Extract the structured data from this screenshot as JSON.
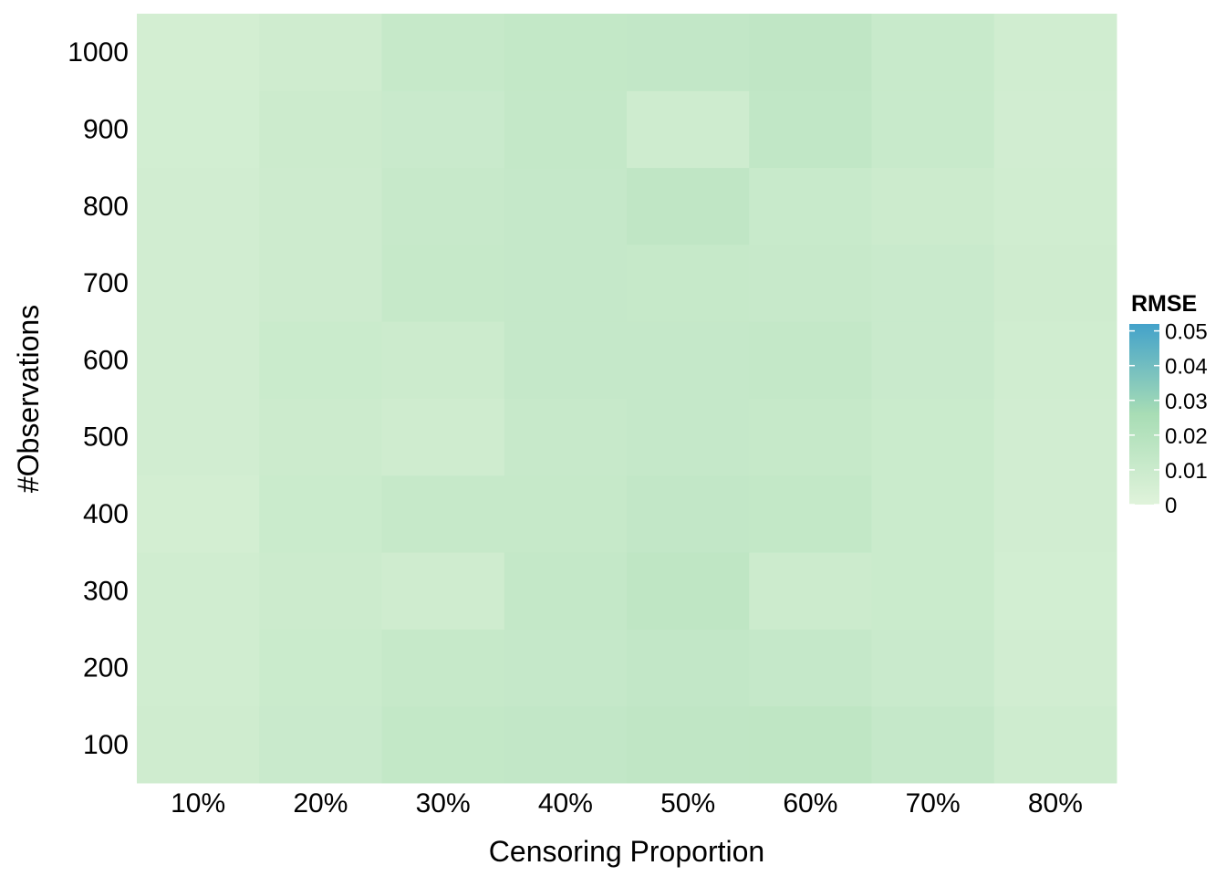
{
  "chart_data": {
    "type": "heatmap",
    "title": "",
    "xlabel": "Censoring Proportion",
    "ylabel": "#Observations",
    "x_categories": [
      "10%",
      "20%",
      "30%",
      "40%",
      "50%",
      "60%",
      "70%",
      "80%"
    ],
    "y_categories": [
      "100",
      "200",
      "300",
      "400",
      "500",
      "600",
      "700",
      "800",
      "900",
      "1000"
    ],
    "values": [
      [
        0.008,
        0.0105,
        0.0135,
        0.014,
        0.015,
        0.0155,
        0.0125,
        0.0085
      ],
      [
        0.0075,
        0.01,
        0.012,
        0.0125,
        0.014,
        0.0125,
        0.0105,
        0.007
      ],
      [
        0.0075,
        0.0095,
        0.008,
        0.013,
        0.0155,
        0.0095,
        0.01,
        0.0065
      ],
      [
        0.006,
        0.01,
        0.012,
        0.012,
        0.014,
        0.0135,
        0.01,
        0.007
      ],
      [
        0.007,
        0.0095,
        0.008,
        0.0115,
        0.0125,
        0.012,
        0.01,
        0.007
      ],
      [
        0.007,
        0.01,
        0.0095,
        0.0125,
        0.0125,
        0.013,
        0.0105,
        0.0075
      ],
      [
        0.007,
        0.009,
        0.012,
        0.0125,
        0.012,
        0.0115,
        0.0105,
        0.008
      ],
      [
        0.007,
        0.009,
        0.0115,
        0.0125,
        0.015,
        0.011,
        0.0095,
        0.0075
      ],
      [
        0.0065,
        0.0095,
        0.0105,
        0.013,
        0.0085,
        0.0145,
        0.011,
        0.007
      ],
      [
        0.006,
        0.008,
        0.012,
        0.0135,
        0.014,
        0.015,
        0.011,
        0.0075
      ]
    ],
    "legend": {
      "title": "RMSE",
      "position": "right",
      "ticks": [
        0,
        0.01,
        0.02,
        0.03,
        0.04,
        0.05
      ],
      "tick_labels": [
        "0",
        "0.01",
        "0.02",
        "0.03",
        "0.04",
        "0.05"
      ],
      "range": [
        0,
        0.052
      ],
      "colors": [
        "#e0f3db",
        "#a8ddb5",
        "#43a2ca"
      ]
    },
    "grid": false
  }
}
